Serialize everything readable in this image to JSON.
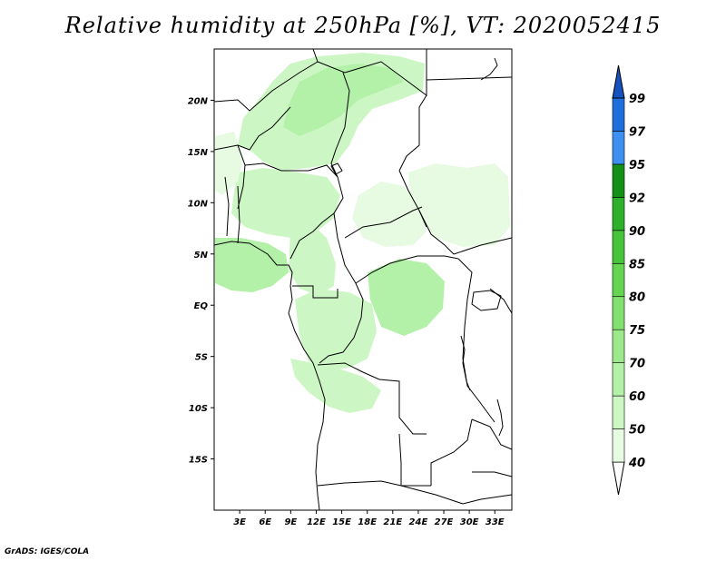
{
  "title": "Relative humidity at 250hPa [%], VT: 2020052415",
  "footer": "GrADS: IGES/COLA",
  "map": {
    "lon_range": [
      0,
      35
    ],
    "lat_range": [
      -20,
      25
    ],
    "lat_ticks": [
      {
        "value": 20,
        "label": "20N"
      },
      {
        "value": 15,
        "label": "15N"
      },
      {
        "value": 10,
        "label": "10N"
      },
      {
        "value": 5,
        "label": "5N"
      },
      {
        "value": 0,
        "label": "EQ"
      },
      {
        "value": -5,
        "label": "5S"
      },
      {
        "value": -10,
        "label": "10S"
      },
      {
        "value": -15,
        "label": "15S"
      }
    ],
    "lon_ticks": [
      {
        "value": 3,
        "label": "3E"
      },
      {
        "value": 6,
        "label": "6E"
      },
      {
        "value": 9,
        "label": "9E"
      },
      {
        "value": 12,
        "label": "12E"
      },
      {
        "value": 15,
        "label": "15E"
      },
      {
        "value": 18,
        "label": "18E"
      },
      {
        "value": 21,
        "label": "21E"
      },
      {
        "value": 24,
        "label": "24E"
      },
      {
        "value": 27,
        "label": "27E"
      },
      {
        "value": 30,
        "label": "30E"
      },
      {
        "value": 33,
        "label": "33E"
      }
    ]
  },
  "colorbar": {
    "levels": [
      "40",
      "50",
      "60",
      "70",
      "75",
      "80",
      "85",
      "90",
      "92",
      "95",
      "97",
      "99"
    ],
    "colors": [
      "#ffffff",
      "#e6fbe2",
      "#cdf6c5",
      "#b4f1a8",
      "#9be98b",
      "#82e06e",
      "#64d452",
      "#47c43b",
      "#2fb02a",
      "#148f18",
      "#3d8ff0",
      "#1f6edc",
      "#1552c0"
    ]
  }
}
